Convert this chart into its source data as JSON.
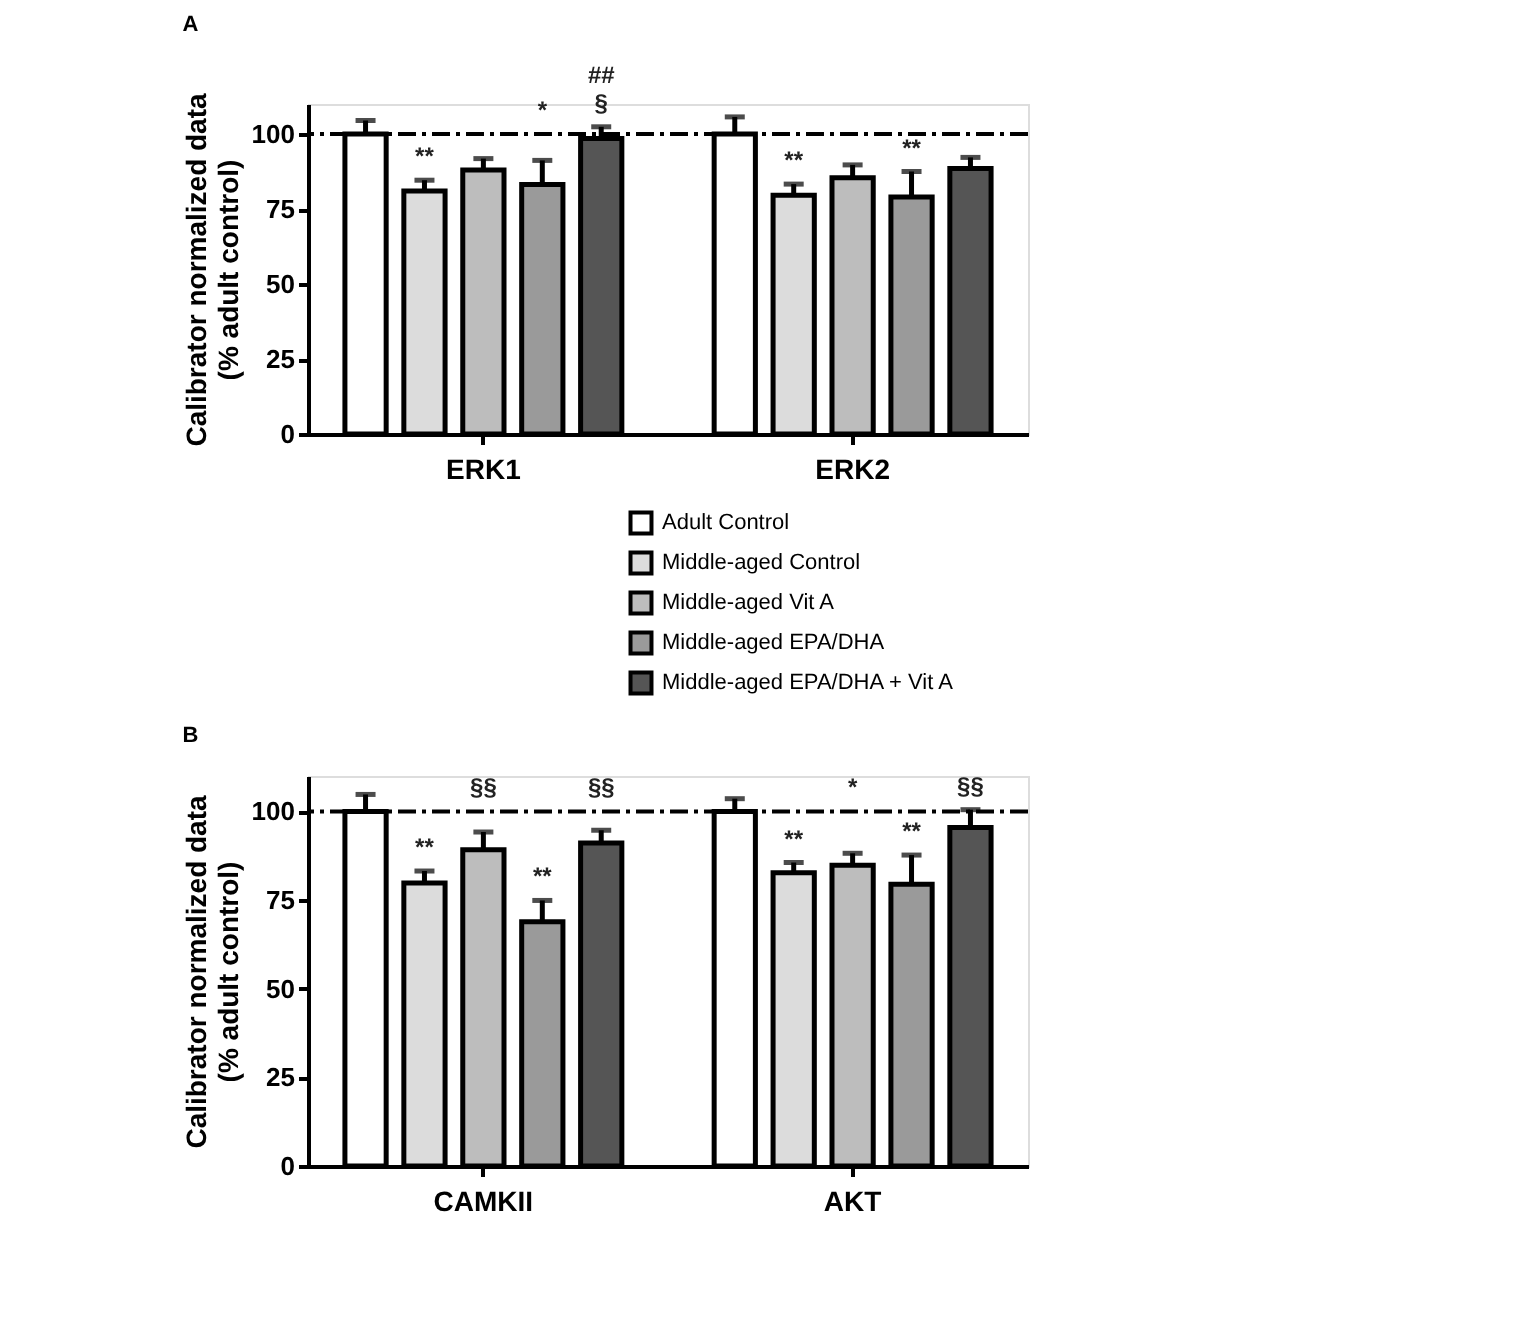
{
  "chart_data": [
    {
      "type": "bar",
      "title": "A",
      "ylabel": "Calibrator normalized data\n(% adult control)",
      "categories": [
        "ERK1",
        "ERK2"
      ],
      "ylim": [
        0,
        110
      ],
      "yticks": [
        0,
        25,
        50,
        75,
        100
      ],
      "grid": false,
      "legend": "bottom right",
      "ref_lines": [
        {
          "axis": "y",
          "value": 100,
          "line_style": "dashdot",
          "color": "#000000"
        }
      ],
      "series": [
        {
          "name": "Adult Control",
          "color": "#ffffff",
          "values": [
            100,
            100
          ],
          "errors": [
            4.5,
            5.7
          ],
          "value_labels": [
            null,
            null
          ]
        },
        {
          "name": "Middle-aged Control",
          "color": "#dcdcdc",
          "values": [
            81,
            79.6
          ],
          "errors": [
            3.6,
            3.7
          ],
          "value_labels": [
            "**",
            "**"
          ]
        },
        {
          "name": "Middle-aged Vit A",
          "color": "#bdbdbd",
          "values": [
            88,
            85.4
          ],
          "errors": [
            3.8,
            4.3
          ],
          "value_labels": [
            null,
            null
          ]
        },
        {
          "name": "Middle-aged EPA/DHA",
          "color": "#9a9a9a",
          "values": [
            83.2,
            79
          ],
          "errors": [
            8,
            8.5
          ],
          "value_labels": [
            "*",
            "**"
          ]
        },
        {
          "name": "Middle-aged EPA/DHA + Vit A",
          "color": "#555555",
          "values": [
            98.5,
            88.5
          ],
          "errors": [
            3.9,
            3.7
          ],
          "value_labels": [
            "##\n§",
            null
          ]
        }
      ]
    },
    {
      "type": "bar",
      "title": "B",
      "ylabel": "Calibrator normalized data\n(% adult  control)",
      "categories": [
        "CAMKII",
        "AKT"
      ],
      "ylim": [
        0,
        110
      ],
      "yticks": [
        0,
        25,
        50,
        75,
        100
      ],
      "grid": false,
      "ref_lines": [
        {
          "axis": "y",
          "value": 100,
          "line_style": "dashdot",
          "color": "#000000"
        }
      ],
      "series": [
        {
          "color": "#ffffff",
          "values": [
            100,
            100
          ],
          "errors": [
            4.8,
            3.6
          ],
          "value_labels": [
            null,
            null
          ]
        },
        {
          "color": "#dcdcdc",
          "values": [
            79.8,
            82.7
          ],
          "errors": [
            3.4,
            2.9
          ],
          "value_labels": [
            "**",
            "**"
          ]
        },
        {
          "color": "#bdbdbd",
          "values": [
            89.2,
            84.8
          ],
          "errors": [
            5,
            3.4
          ],
          "value_labels": [
            "§§",
            "*"
          ]
        },
        {
          "color": "#9a9a9a",
          "values": [
            68.9,
            79.5
          ],
          "errors": [
            6,
            8.2
          ],
          "value_labels": [
            "**",
            "**"
          ]
        },
        {
          "color": "#555555",
          "values": [
            91.1,
            95.5
          ],
          "errors": [
            3.6,
            5
          ],
          "value_labels": [
            "§§",
            "§§"
          ]
        }
      ]
    }
  ]
}
